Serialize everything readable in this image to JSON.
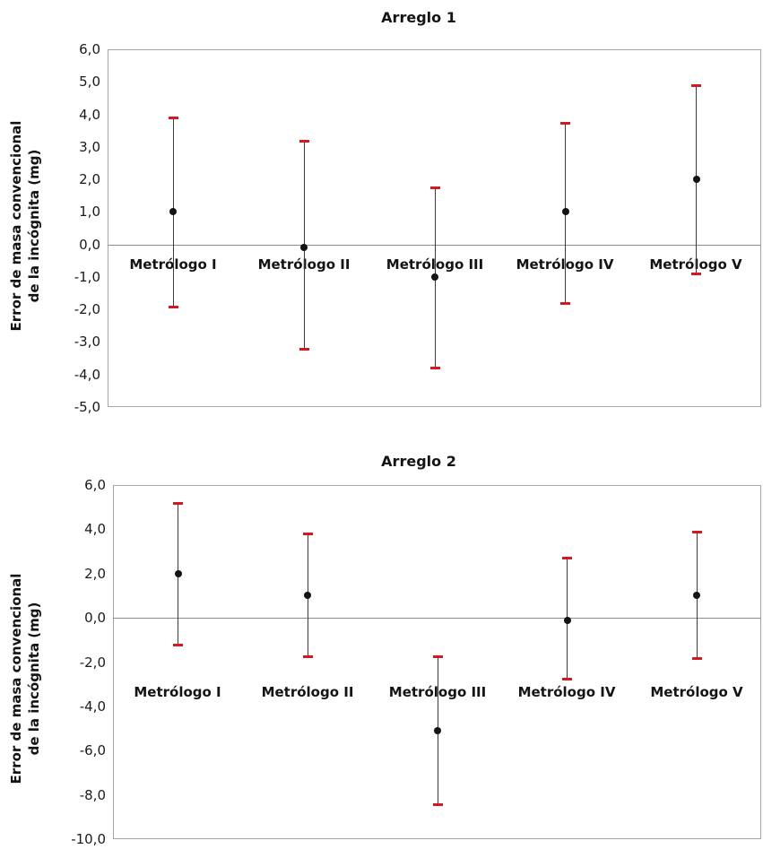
{
  "page": {
    "background": "#ffffff"
  },
  "chart_data": [
    {
      "type": "scatter",
      "subtype": "points-with-error-bars",
      "title": "Arreglo 1",
      "ylabel_lines": [
        "Error de masa convencional",
        "de la incógnita (mg)"
      ],
      "xlabel": "",
      "categories": [
        "Metrólogo I",
        "Metrólogo II",
        "Metrólogo III",
        "Metrólogo IV",
        "Metrólogo V"
      ],
      "series": [
        {
          "name": "Error de masa convencional (mg)",
          "values": [
            1.0,
            -0.1,
            -1.0,
            1.0,
            2.0
          ],
          "upper": [
            3.9,
            3.2,
            1.75,
            3.75,
            4.9
          ],
          "lower": [
            -1.9,
            -3.2,
            -3.8,
            -1.8,
            -0.9
          ]
        }
      ],
      "ylim": [
        -5.0,
        6.0
      ],
      "ytick_step": 1.0,
      "ytick_labels": [
        "6,0",
        "5,0",
        "4,0",
        "3,0",
        "2,0",
        "1,0",
        "0,0",
        "-1,0",
        "-2,0",
        "-3,0",
        "-4,0",
        "-5,0"
      ],
      "grid": "zero-line-only",
      "legend": "none",
      "colors": {
        "marker": "#141414",
        "error_line": "#3a3a3a",
        "error_cap": "#d41a20",
        "axis_border": "#a6a6a6",
        "zero_line": "#8c8c8c"
      }
    },
    {
      "type": "scatter",
      "subtype": "points-with-error-bars",
      "title": "Arreglo 2",
      "ylabel_lines": [
        "Error de masa convencional",
        "de la incógnita (mg)"
      ],
      "xlabel": "",
      "categories": [
        "Metrólogo I",
        "Metrólogo II",
        "Metrólogo III",
        "Metrólogo IV",
        "Metrólogo V"
      ],
      "series": [
        {
          "name": "Error de masa convencional (mg)",
          "values": [
            2.0,
            1.0,
            -5.1,
            -0.1,
            1.0
          ],
          "upper": [
            5.2,
            3.8,
            -1.75,
            2.7,
            3.9
          ],
          "lower": [
            -1.2,
            -1.75,
            -8.4,
            -2.75,
            -1.8
          ]
        }
      ],
      "ylim": [
        -10.0,
        6.0
      ],
      "ytick_step": 2.0,
      "ytick_labels": [
        "6,0",
        "4,0",
        "2,0",
        "0,0",
        "-2,0",
        "-4,0",
        "-6,0",
        "-8,0",
        "-10,0"
      ],
      "grid": "zero-line-only",
      "legend": "none",
      "colors": {
        "marker": "#141414",
        "error_line": "#3a3a3a",
        "error_cap": "#d41a20",
        "axis_border": "#a6a6a6",
        "zero_line": "#8c8c8c"
      }
    }
  ]
}
